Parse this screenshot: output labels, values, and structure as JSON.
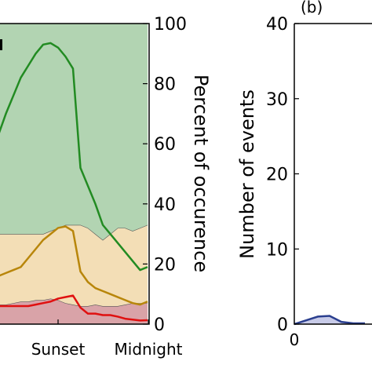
{
  "chart_data": [
    {
      "type": "area",
      "panel_label": "",
      "x_tick_labels": [
        "Sunset",
        "Midnight"
      ],
      "x": [
        0,
        0.5,
        1,
        1.5,
        2,
        2.5,
        3,
        3.5,
        4,
        4.5,
        5,
        5.5,
        6,
        6.5,
        7,
        7.5,
        8,
        8.5,
        9,
        9.5,
        10
      ],
      "xlim": [
        0,
        10
      ],
      "ylim": [
        0,
        100
      ],
      "y_ticks": [
        0,
        20,
        40,
        60,
        80,
        100
      ],
      "ylabel": "Percent of occurence",
      "ylabel_position": "right",
      "stacked_areas": [
        {
          "color": "#d9a3a8",
          "values": [
            6.5,
            6.5,
            7,
            7.5,
            7.5,
            8,
            8,
            8.5,
            8,
            7,
            6.5,
            6,
            6,
            6.5,
            6,
            6,
            6,
            6.5,
            7,
            7,
            7
          ]
        },
        {
          "color": "#f3deb6",
          "values": [
            30,
            30,
            30,
            30,
            30,
            30,
            30,
            31,
            32,
            33,
            33,
            33,
            32,
            30,
            28,
            30,
            32,
            32,
            31,
            32,
            33
          ]
        },
        {
          "color": "#b2d4b2",
          "values": [
            100,
            100,
            100,
            100,
            100,
            100,
            100,
            100,
            100,
            100,
            100,
            100,
            100,
            100,
            100,
            100,
            100,
            100,
            100,
            100,
            100
          ]
        }
      ],
      "series": [
        {
          "color": "#228b22",
          "values": [
            63,
            70,
            76,
            82,
            86,
            90,
            93,
            93.5,
            92,
            89,
            85,
            52,
            46,
            40,
            33,
            30,
            27,
            24,
            21,
            18,
            19
          ]
        },
        {
          "color": "#b8860b",
          "values": [
            16,
            17,
            18,
            19,
            22,
            25,
            28,
            30,
            32,
            32.5,
            31,
            17.5,
            14,
            12,
            11,
            10,
            9,
            8,
            7,
            6.5,
            7.5
          ]
        },
        {
          "color": "#e01010",
          "values": [
            6,
            6,
            6,
            6,
            6,
            6.5,
            7,
            7.5,
            8.5,
            9,
            9.5,
            5.5,
            3.5,
            3.5,
            3,
            3,
            2.5,
            1.8,
            1.5,
            1.2,
            1.3
          ]
        }
      ]
    },
    {
      "type": "area",
      "panel_label": "(b)",
      "x": [
        0,
        0.5,
        1,
        1.5,
        2,
        2.5,
        3
      ],
      "x_tick_labels": [
        "0"
      ],
      "ylim": [
        0,
        40
      ],
      "y_ticks": [
        0,
        10,
        20,
        30,
        40
      ],
      "ylabel": "Number of events",
      "series": [
        {
          "color": "#2b3f8f",
          "fill": "#c8cbe8",
          "values": [
            0,
            0.5,
            1,
            1.1,
            0.3,
            0.1,
            0.1
          ]
        }
      ]
    }
  ]
}
